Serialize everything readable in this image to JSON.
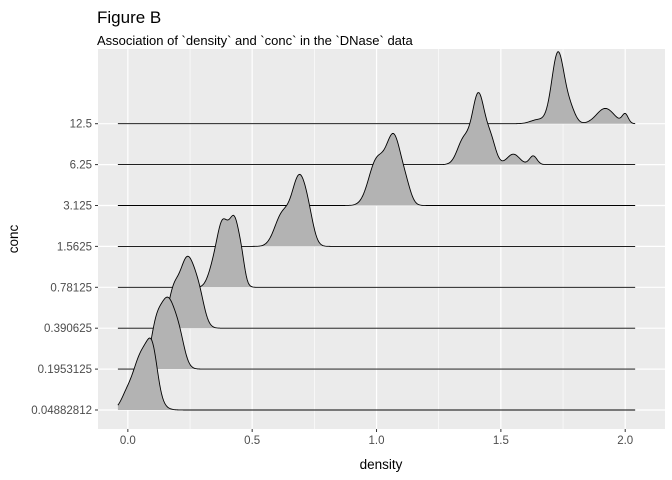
{
  "chart_data": {
    "type": "ridgeline",
    "title": "Figure B",
    "subtitle": "Association of `density` and `conc` in the `DNase` data",
    "xlabel": "density",
    "ylabel": "conc",
    "xlim": [
      -0.12,
      2.16
    ],
    "x_ticks": [
      0.0,
      0.5,
      1.0,
      1.5,
      2.0
    ],
    "x_tick_labels": [
      "0.0",
      "0.5",
      "1.0",
      "1.5",
      "2.0"
    ],
    "grid": true,
    "fill_color": "#b3b3b3",
    "panel_color": "#ebebeb",
    "categories": [
      "0.04882812",
      "0.1953125",
      "0.390625",
      "0.78125",
      "1.5625",
      "3.125",
      "6.25",
      "12.5"
    ],
    "series": [
      {
        "label": "0.04882812",
        "peaks": [
          [
            0.06,
            0.04,
            1.0
          ],
          [
            -0.01,
            0.02,
            0.12
          ],
          [
            0.1,
            0.02,
            0.55
          ]
        ]
      },
      {
        "label": "0.1953125",
        "peaks": [
          [
            0.16,
            0.035,
            1.0
          ],
          [
            0.11,
            0.02,
            0.35
          ],
          [
            0.21,
            0.02,
            0.22
          ]
        ]
      },
      {
        "label": "0.390625",
        "peaks": [
          [
            0.24,
            0.035,
            1.0
          ],
          [
            0.18,
            0.02,
            0.35
          ],
          [
            0.29,
            0.02,
            0.22
          ]
        ]
      },
      {
        "label": "0.78125",
        "peaks": [
          [
            0.38,
            0.023,
            0.85
          ],
          [
            0.43,
            0.022,
            0.9
          ],
          [
            0.34,
            0.02,
            0.2
          ],
          [
            0.46,
            0.012,
            0.15
          ]
        ]
      },
      {
        "label": "1.5625",
        "peaks": [
          [
            0.69,
            0.03,
            1.0
          ],
          [
            0.62,
            0.03,
            0.45
          ],
          [
            0.73,
            0.02,
            0.2
          ]
        ]
      },
      {
        "label": "3.125",
        "peaks": [
          [
            1.07,
            0.03,
            0.95
          ],
          [
            1.0,
            0.032,
            0.62
          ],
          [
            1.12,
            0.02,
            0.18
          ]
        ]
      },
      {
        "label": "6.25",
        "peaks": [
          [
            1.41,
            0.025,
            1.2
          ],
          [
            1.35,
            0.025,
            0.42
          ],
          [
            1.46,
            0.02,
            0.38
          ],
          [
            1.55,
            0.025,
            0.18
          ],
          [
            1.63,
            0.015,
            0.15
          ]
        ]
      },
      {
        "label": "12.5",
        "peaks": [
          [
            1.73,
            0.025,
            1.4
          ],
          [
            1.78,
            0.02,
            0.25
          ],
          [
            1.92,
            0.035,
            0.3
          ],
          [
            2.0,
            0.012,
            0.18
          ],
          [
            1.65,
            0.03,
            0.08
          ]
        ]
      }
    ]
  }
}
